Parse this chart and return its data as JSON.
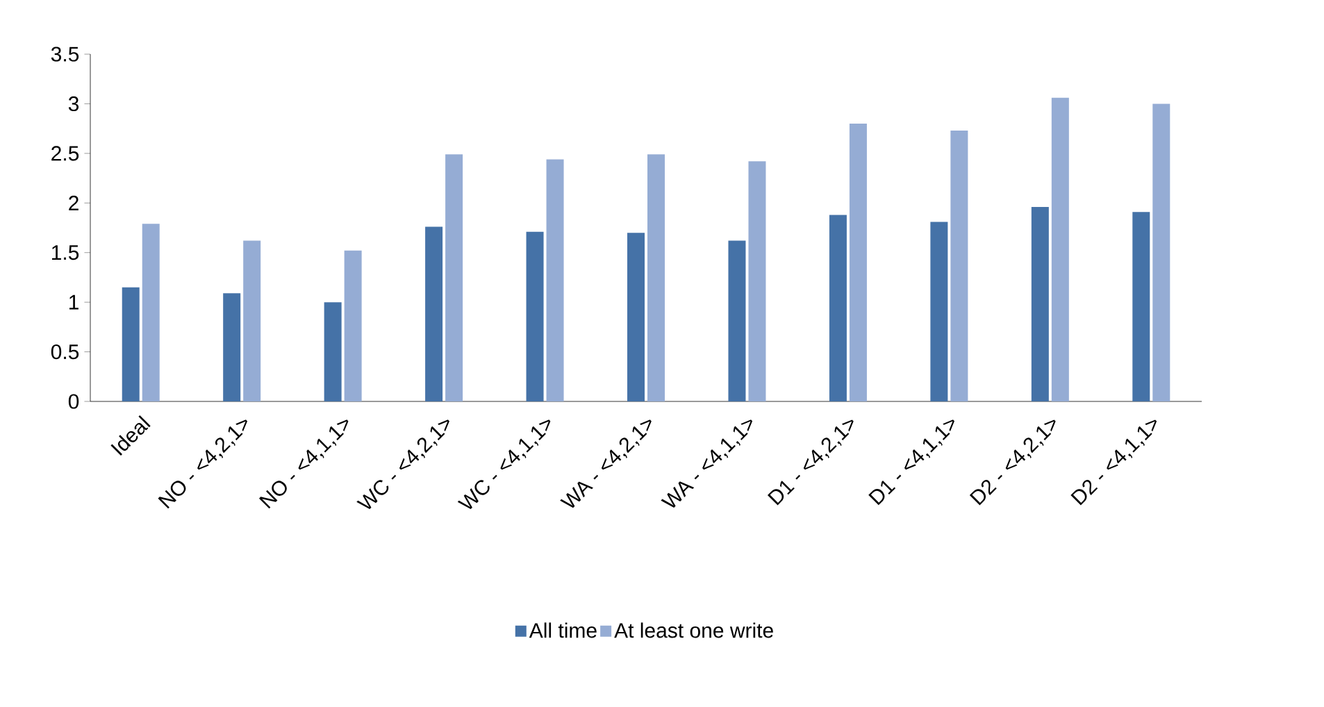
{
  "chart_data": {
    "type": "bar",
    "categories": [
      "Ideal",
      "NO - <4,2,1>",
      "NO - <4,1,1>",
      "WC - <4,2,1>",
      "WC - <4,1,1>",
      "WA - <4,2,1>",
      "WA - <4,1,1>",
      "D1 - <4,2,1>",
      "D1 - <4,1,1>",
      "D2 - <4,2,1>",
      "D2 - <4,1,1>"
    ],
    "series": [
      {
        "name": "All time",
        "color": "#4572a7",
        "values": [
          1.15,
          1.09,
          1.0,
          1.76,
          1.71,
          1.7,
          1.62,
          1.88,
          1.81,
          1.96,
          1.91
        ]
      },
      {
        "name": "At least one write",
        "color": "#95acd4",
        "values": [
          1.79,
          1.62,
          1.52,
          2.49,
          2.44,
          2.49,
          2.42,
          2.8,
          2.73,
          3.06,
          3.0
        ]
      }
    ],
    "ylim": [
      0,
      3.5
    ],
    "yticks": [
      0,
      0.5,
      1,
      1.5,
      2,
      2.5,
      3,
      3.5
    ],
    "grid": false,
    "legend": "bottom"
  }
}
